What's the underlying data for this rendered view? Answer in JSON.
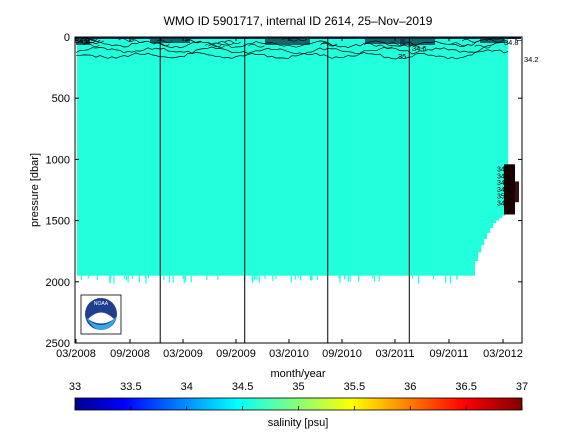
{
  "chart_data": [
    {
      "type": "heatmap",
      "title": "WMO ID 5901717, internal ID 2614, 25–Nov–2019",
      "xlabel": "month/year",
      "ylabel": "pressure [dbar]",
      "x_tick_labels": [
        "03/2008",
        "09/2008",
        "03/2009",
        "09/2009",
        "03/2010",
        "09/2010",
        "03/2011",
        "09/2011",
        "03/2012"
      ],
      "y_tick_labels": [
        "0",
        "500",
        "1000",
        "1500",
        "2000",
        "2500"
      ],
      "y_ticks": [
        0,
        500,
        1000,
        1500,
        2000,
        2500
      ],
      "ylim": [
        0,
        2500
      ],
      "y_reversed": true,
      "grid": false,
      "dominant_value": 34.6,
      "profile_max_pressure": 1950,
      "vertical_lines_x": [
        "2008-12-15",
        "2009-09-30",
        "2010-07-10",
        "2011-04-15"
      ],
      "contours": [
        {
          "label": "34.6",
          "approx_pressure": 110
        },
        {
          "label": "34.8",
          "approx_pressure": 60
        },
        {
          "label": "35",
          "approx_pressure": 155
        }
      ],
      "contour_label_texts": [
        "34.8",
        "34.6",
        "35",
        "34.2"
      ],
      "deep_cluster_labels": [
        "34.2",
        "34.4",
        "34.6",
        "34.8",
        "35",
        "34.9"
      ]
    },
    {
      "type": "heatmap",
      "role": "colorbar",
      "xlabel": "salinity [psu]",
      "range": [
        33,
        37
      ],
      "tick_labels": [
        "33",
        "33.5",
        "34",
        "34.5",
        "35",
        "35.5",
        "36",
        "36.5",
        "37"
      ],
      "colormap": [
        "#00008f",
        "#0000ff",
        "#00ffff",
        "#ffff00",
        "#ff0000",
        "#800000"
      ]
    }
  ],
  "logo": {
    "text": "NOAA",
    "icon": "noaa-logo-icon"
  },
  "colors": {
    "fill": "#22ffdd",
    "axes": "#000000",
    "background": "#ffffff"
  }
}
